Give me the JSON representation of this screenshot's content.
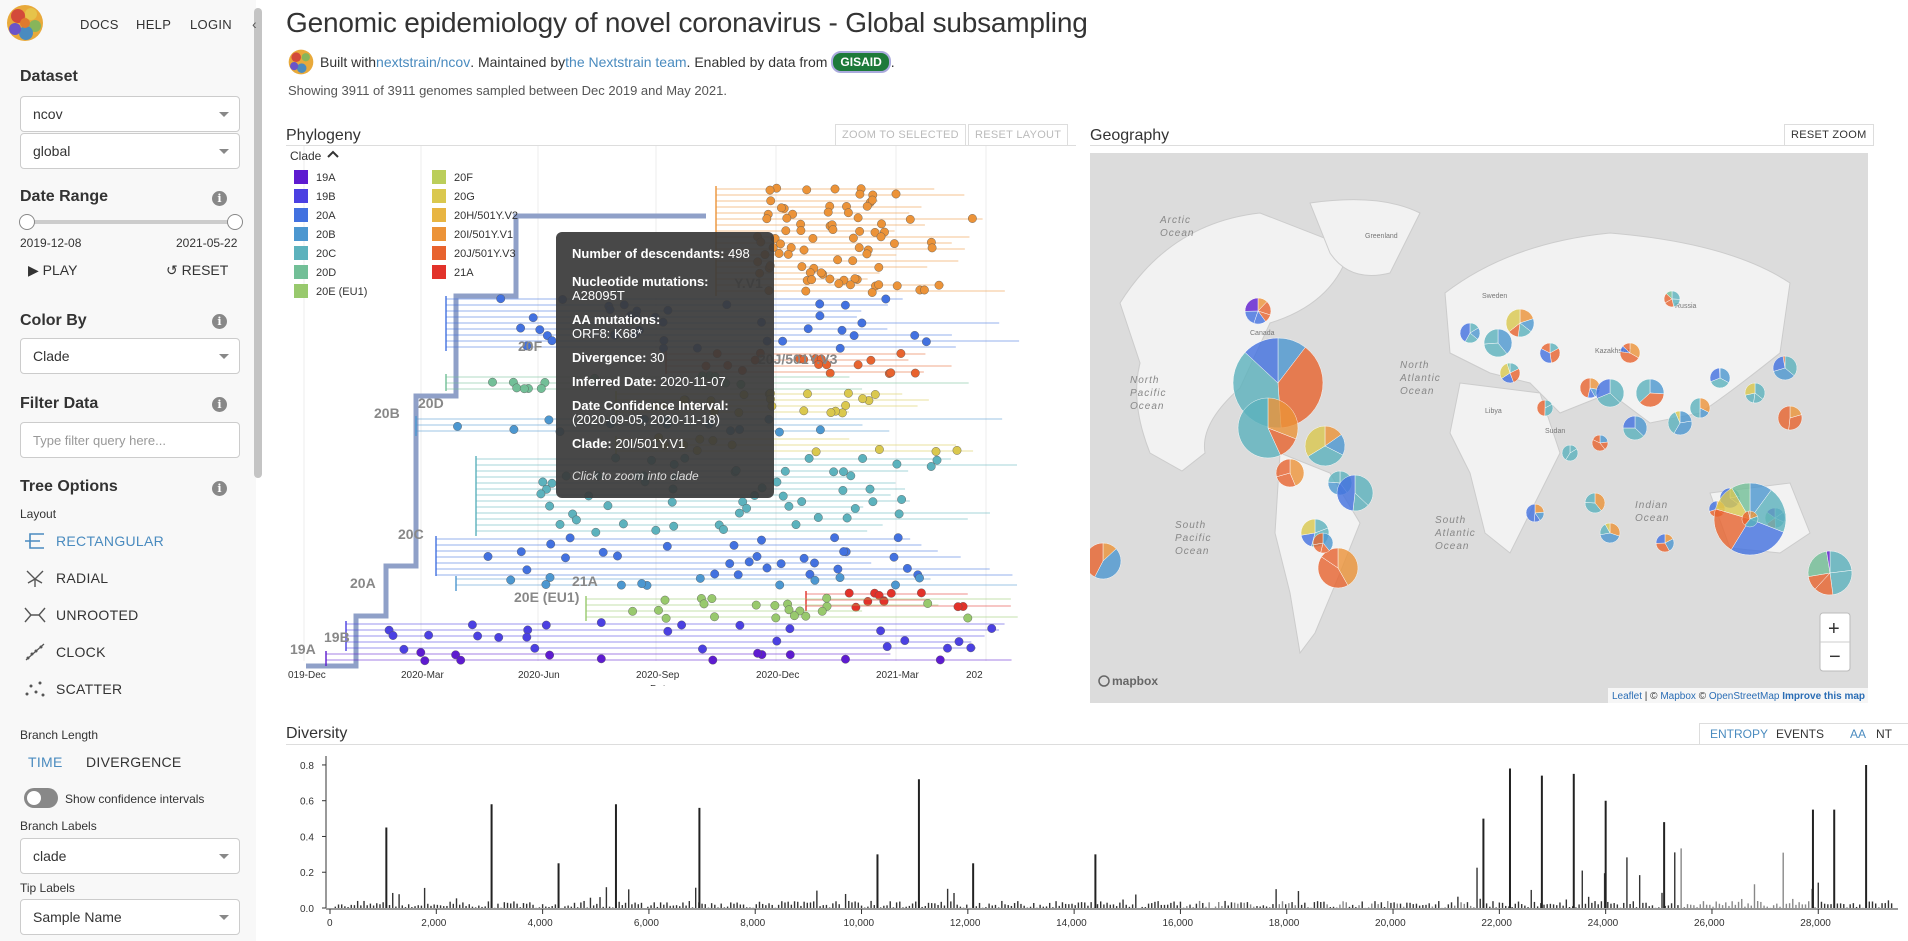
{
  "nav": {
    "docs": "DOCS",
    "help": "HELP",
    "login": "LOGIN",
    "collapse_icon": "chevron-left-icon"
  },
  "sidebar": {
    "dataset_heading": "Dataset",
    "dataset_1": "ncov",
    "dataset_2": "global",
    "date_range_heading": "Date Range",
    "date_start": "2019-12-08",
    "date_end": "2021-05-22",
    "play_label": "PLAY",
    "reset_label": "RESET",
    "color_by_heading": "Color By",
    "color_by_value": "Clade",
    "filter_heading": "Filter Data",
    "filter_placeholder": "Type filter query here...",
    "tree_options_heading": "Tree Options",
    "layout_label": "Layout",
    "layouts": [
      "RECTANGULAR",
      "RADIAL",
      "UNROOTED",
      "CLOCK",
      "SCATTER"
    ],
    "branch_length_label": "Branch Length",
    "branch_time": "TIME",
    "branch_divergence": "DIVERGENCE",
    "confidence_label": "Show confidence intervals",
    "branch_labels_label": "Branch Labels",
    "branch_labels_value": "clade",
    "tip_labels_label": "Tip Labels",
    "tip_labels_value": "Sample Name"
  },
  "header": {
    "title": "Genomic epidemiology of novel coronavirus - Global subsampling",
    "built_with": "Built with ",
    "built_link": "nextstrain/ncov",
    "maintained": ". Maintained by ",
    "maintained_link": "the Nextstrain team",
    "enabled": ". Enabled by data from ",
    "gisaid": "GISAID",
    "end": ".",
    "showing": "Showing 3911 of 3911 genomes sampled between Dec 2019 and May 2021."
  },
  "phylogeny": {
    "title": "Phylogeny",
    "zoom_selected": "ZOOM TO SELECTED",
    "reset_layout": "RESET LAYOUT",
    "legend_title": "Clade",
    "legend": [
      {
        "name": "19A",
        "color": "#5e1bd0"
      },
      {
        "name": "19B",
        "color": "#4b40e2"
      },
      {
        "name": "20A",
        "color": "#4271e0"
      },
      {
        "name": "20B",
        "color": "#4c97d0"
      },
      {
        "name": "20C",
        "color": "#5cb2bd"
      },
      {
        "name": "20D",
        "color": "#72bf97"
      },
      {
        "name": "20E (EU1)",
        "color": "#98c96d"
      },
      {
        "name": "20F",
        "color": "#bbce5a"
      },
      {
        "name": "20G",
        "color": "#dac84e"
      },
      {
        "name": "20H/501Y.V2",
        "color": "#e8b542"
      },
      {
        "name": "20I/501Y.V1",
        "color": "#ec9338"
      },
      {
        "name": "20J/501Y.V3",
        "color": "#e8632e"
      },
      {
        "name": "21A",
        "color": "#e2322a"
      }
    ],
    "branch_labels": [
      "19A",
      "19B",
      "20A",
      "20B",
      "20C",
      "20D",
      "20F",
      "20E (EU1)",
      "21A",
      "20J/501Y.V3",
      "Y.V1"
    ],
    "x_ticks": [
      "019-Dec",
      "2020-Mar",
      "2020-Jun",
      "2020-Sep",
      "2020-Dec",
      "2021-Mar",
      "202"
    ],
    "x_label": "Date",
    "tooltip": {
      "descendants_label": "Number of descendants:",
      "descendants_value": "498",
      "nt_label": "Nucleotide mutations:",
      "nt_value": "A28095T",
      "aa_label": "AA mutations:",
      "aa_value": "ORF8:  K68*",
      "divergence_label": "Divergence:",
      "divergence_value": "30",
      "inferred_label": "Inferred Date:",
      "inferred_value": "2020-11-07",
      "confidence_label": "Date Confidence Interval:",
      "confidence_value": "(2020-09-05, 2020-11-18)",
      "clade_label": "Clade:",
      "clade_value": "20I/501Y.V1",
      "hint": "Click to zoom into clade"
    }
  },
  "geography": {
    "title": "Geography",
    "reset_zoom": "RESET ZOOM",
    "ocean_labels": [
      "Arctic Ocean",
      "North Pacific Ocean",
      "North Atlantic Ocean",
      "South Pacific Ocean",
      "South Atlantic Ocean",
      "Indian Ocean"
    ],
    "land_labels": [
      "Greenland",
      "Canada",
      "Sweden",
      "Russia",
      "Libya",
      "Sudan",
      "Kazakhstan"
    ],
    "zoom_in": "+",
    "zoom_out": "−",
    "mapbox_logo": "mapbox",
    "attribution_leaflet": "Leaflet",
    "attribution_sep1": " | © ",
    "attribution_mapbox": "Mapbox",
    "attribution_sep2": " © ",
    "attribution_osm": "OpenStreetMap",
    "attribution_improve": "Improve this map"
  },
  "diversity": {
    "title": "Diversity",
    "entropy": "ENTROPY",
    "events": "EVENTS",
    "aa": "AA",
    "nt": "NT"
  },
  "chart_data": {
    "type": "bar",
    "title": "Diversity",
    "xlabel": "",
    "ylabel": "",
    "x_ticks": [
      "0",
      "2,000",
      "4,000",
      "6,000",
      "8,000",
      "10,000",
      "12,000",
      "14,000",
      "16,000",
      "18,000",
      "20,000",
      "22,000",
      "24,000",
      "26,000",
      "28,000"
    ],
    "y_ticks": [
      "0.0",
      "0.2",
      "0.4",
      "0.6",
      "0.8"
    ],
    "xlim": [
      0,
      29500
    ],
    "ylim": [
      0,
      0.85
    ],
    "peaks": [
      {
        "x": 1060,
        "y": 0.45
      },
      {
        "x": 3040,
        "y": 0.58
      },
      {
        "x": 4300,
        "y": 0.25
      },
      {
        "x": 5380,
        "y": 0.58
      },
      {
        "x": 6950,
        "y": 0.56
      },
      {
        "x": 10300,
        "y": 0.3
      },
      {
        "x": 11080,
        "y": 0.72
      },
      {
        "x": 12100,
        "y": 0.25
      },
      {
        "x": 14400,
        "y": 0.3
      },
      {
        "x": 21700,
        "y": 0.5
      },
      {
        "x": 22200,
        "y": 0.78
      },
      {
        "x": 22800,
        "y": 0.74
      },
      {
        "x": 23400,
        "y": 0.75
      },
      {
        "x": 24000,
        "y": 0.6
      },
      {
        "x": 25100,
        "y": 0.48
      },
      {
        "x": 28900,
        "y": 0.8
      },
      {
        "x": 27900,
        "y": 0.55
      },
      {
        "x": 28300,
        "y": 0.55
      }
    ]
  }
}
